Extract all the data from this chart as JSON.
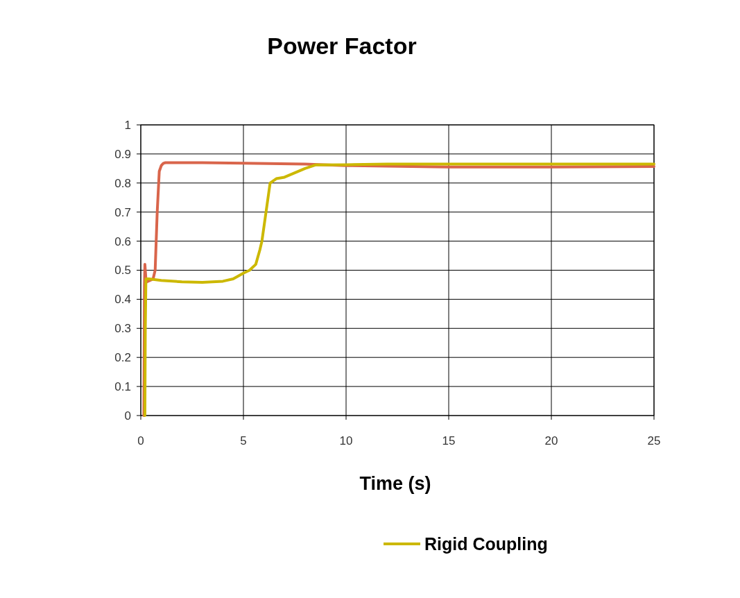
{
  "chart_data": {
    "type": "line",
    "title": "Power Factor",
    "xlabel": "Time (s)",
    "xlim": [
      0,
      25
    ],
    "xticks": [
      0,
      5,
      10,
      15,
      20,
      25
    ],
    "ylim": [
      0,
      1
    ],
    "yticks": [
      0,
      0.1,
      0.2,
      0.3,
      0.4,
      0.5,
      0.6,
      0.7,
      0.8,
      0.9,
      1
    ],
    "grid": true,
    "legend": "bottom",
    "marker": "none",
    "line_style": "solid",
    "series": [
      {
        "color": "#d9654b",
        "x": [
          0.15,
          0.18,
          0.2,
          0.25,
          0.3,
          0.45,
          0.6,
          0.7,
          0.8,
          0.9,
          1.0,
          1.1,
          1.2,
          1.5,
          3,
          5,
          8,
          10,
          12,
          15,
          20,
          25
        ],
        "values": [
          0,
          0.45,
          0.52,
          0.47,
          0.46,
          0.465,
          0.47,
          0.5,
          0.7,
          0.84,
          0.86,
          0.868,
          0.87,
          0.87,
          0.87,
          0.868,
          0.865,
          0.86,
          0.858,
          0.855,
          0.855,
          0.857
        ]
      },
      {
        "name": "Rigid Coupling",
        "color": "#ccb800",
        "x": [
          0.2,
          0.22,
          0.25,
          0.4,
          1,
          2,
          3,
          4,
          4.5,
          5,
          5.3,
          5.6,
          5.8,
          5.9,
          6.1,
          6.3,
          6.6,
          7,
          7.5,
          8,
          8.5,
          10,
          12,
          15,
          20,
          25
        ],
        "values": [
          0,
          0.3,
          0.47,
          0.47,
          0.465,
          0.46,
          0.458,
          0.462,
          0.47,
          0.49,
          0.5,
          0.52,
          0.57,
          0.6,
          0.7,
          0.8,
          0.815,
          0.82,
          0.835,
          0.85,
          0.862,
          0.863,
          0.865,
          0.865,
          0.865,
          0.865
        ]
      }
    ]
  }
}
